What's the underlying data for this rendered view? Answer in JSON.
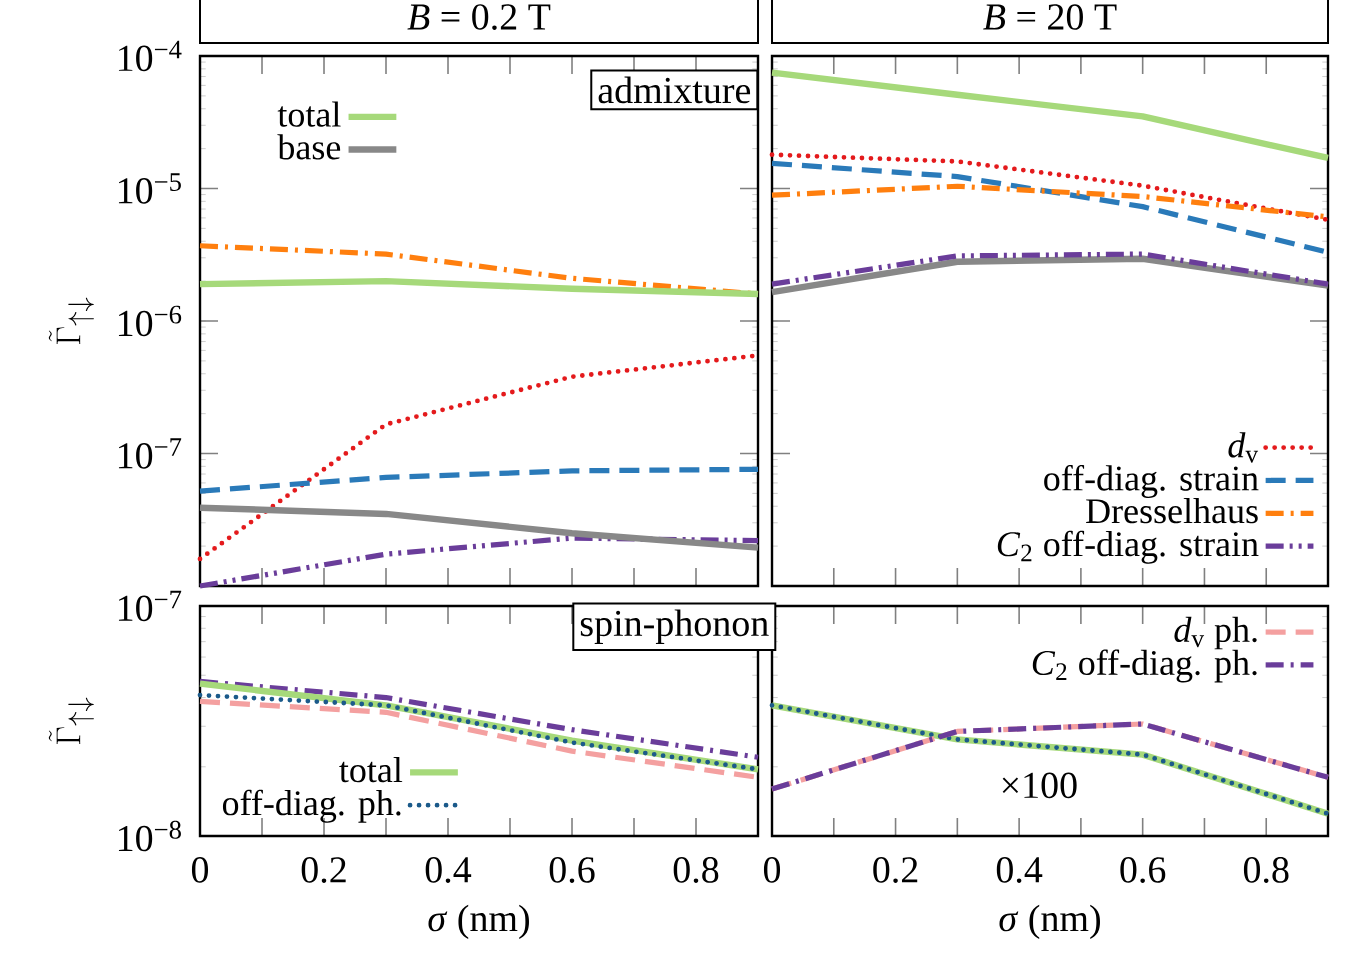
{
  "chart_data": [
    {
      "type": "line",
      "title": "*B* = 0.2 T",
      "ylabel": "\\tilde{\\Gamma}_{\\uparrow\\downarrow}",
      "log": "y",
      "xlim": [
        0,
        0.9
      ],
      "ylim": [
        1e-08,
        0.0001
      ],
      "xticks": [
        0,
        {
          "value": 0.1,
          "label": null
        },
        0.2,
        {
          "value": 0.3,
          "label": null
        },
        0.4,
        {
          "value": 0.5,
          "label": null
        },
        0.6,
        {
          "value": 0.7,
          "label": null
        },
        0.8
      ],
      "yticks": [
        {
          "value": 1e-08,
          "label": null
        },
        {
          "value": 1e-07,
          "label": "10$^{−7}$"
        },
        {
          "value": 1e-06,
          "label": "10$^{−6}$"
        },
        {
          "value": 1e-05,
          "label": "10$^{−5}$"
        },
        {
          "value": 0.0001,
          "label": "10$^{−4}$"
        }
      ],
      "tick_labels": "y",
      "legend": "top left",
      "annotations": [
        "admixture"
      ],
      "x": [
        0,
        0.3,
        0.6,
        0.9
      ],
      "series": [
        {
          "color": "#e41a1c",
          "line_style": "dotted",
          "values": [
            1.6e-08,
            1.66e-07,
            3.8e-07,
            5.5e-07
          ]
        },
        {
          "color": "#2a7ab9",
          "line_style": "dashed",
          "values": [
            5.2e-08,
            6.6e-08,
            7.4e-08,
            7.6e-08
          ]
        },
        {
          "color": "#ff7f0e",
          "line_style": "dashdot",
          "values": [
            3.7e-06,
            3.2e-06,
            2.1e-06,
            1.6e-06
          ]
        },
        {
          "color": "#6a3d9a",
          "line_style": "dashdotdot",
          "values": [
            1e-08,
            1.74e-08,
            2.3e-08,
            2.2e-08
          ]
        },
        {
          "name": "total",
          "color": "#a6d97a",
          "line_style": "solid",
          "values": [
            1.9e-06,
            2e-06,
            1.75e-06,
            1.6e-06
          ]
        },
        {
          "name": "base",
          "color": "#888888",
          "line_style": "solid",
          "values": [
            3.9e-08,
            3.5e-08,
            2.5e-08,
            1.95e-08
          ]
        }
      ]
    },
    {
      "type": "line",
      "title": "*B* = 20 T",
      "log": "y",
      "xlim": [
        0,
        0.9
      ],
      "ylim": [
        1e-08,
        0.0001
      ],
      "xticks": [
        0,
        {
          "value": 0.1,
          "label": null
        },
        0.2,
        {
          "value": 0.3,
          "label": null
        },
        0.4,
        {
          "value": 0.5,
          "label": null
        },
        0.6,
        {
          "value": 0.7,
          "label": null
        },
        0.8
      ],
      "yticks": [
        {
          "value": 1e-08,
          "label": null
        },
        {
          "value": 1e-07,
          "label": null
        },
        {
          "value": 1e-06,
          "label": null
        },
        {
          "value": 1e-05,
          "label": null
        },
        {
          "value": 0.0001,
          "label": null
        }
      ],
      "tick_labels": false,
      "legend": "bottom right",
      "x": [
        0,
        0.3,
        0.6,
        0.9
      ],
      "series": [
        {
          "color": "#a6d97a",
          "line_style": "solid",
          "values": [
            7.5e-05,
            5.1e-05,
            3.5e-05,
            1.7e-05
          ]
        },
        {
          "color": "#888888",
          "line_style": "solid",
          "values": [
            1.65e-06,
            2.8e-06,
            2.95e-06,
            1.85e-06
          ]
        },
        {
          "name": "*d*$_{v}$",
          "color": "#e41a1c",
          "line_style": "dotted",
          "values": [
            1.8e-05,
            1.6e-05,
            1.05e-05,
            5.8e-06
          ]
        },
        {
          "name": "off-diag. strain",
          "color": "#2a7ab9",
          "line_style": "dashed",
          "values": [
            1.55e-05,
            1.23e-05,
            7.3e-06,
            3.3e-06
          ]
        },
        {
          "name": "Dresselhaus",
          "color": "#ff7f0e",
          "line_style": "dashdot",
          "values": [
            8.9e-06,
            1.04e-05,
            8.7e-06,
            6.1e-06
          ]
        },
        {
          "name": "*C*$_{2}$ off-diag. strain",
          "color": "#6a3d9a",
          "line_style": "dashdotdot",
          "values": [
            1.9e-06,
            3.1e-06,
            3.2e-06,
            1.9e-06
          ]
        }
      ]
    },
    {
      "type": "line",
      "xlabel": "*σ* (nm)",
      "ylabel": "\\tilde{\\Gamma}_{\\uparrow\\downarrow}",
      "log": "y",
      "xlim": [
        0,
        0.9
      ],
      "ylim": [
        1e-08,
        1e-07
      ],
      "xticks": [
        0,
        {
          "value": 0.1,
          "label": null
        },
        0.2,
        {
          "value": 0.3,
          "label": null
        },
        0.4,
        {
          "value": 0.5,
          "label": null
        },
        0.6,
        {
          "value": 0.7,
          "label": null
        },
        0.8
      ],
      "yticks": [
        {
          "value": 1e-08,
          "label": "10$^{−8}$"
        },
        {
          "value": 1e-07,
          "label": "10$^{−7}$"
        }
      ],
      "legend": "bottom left",
      "annotations": [
        "spin-phonon"
      ],
      "x": [
        0,
        0.3,
        0.6,
        0.9
      ],
      "series": [
        {
          "color": "#f4a0a0",
          "line_style": "dashed",
          "values": [
            3.85e-08,
            3.45e-08,
            2.34e-08,
            1.8e-08
          ]
        },
        {
          "color": "#6a3d9a",
          "line_style": "dashdot",
          "values": [
            4.7e-08,
            4e-08,
            2.9e-08,
            2.2e-08
          ]
        },
        {
          "name": "total",
          "color": "#a6d97a",
          "line_style": "solid",
          "values": [
            4.6e-08,
            3.7e-08,
            2.6e-08,
            1.95e-08
          ]
        },
        {
          "name": "off-diag. ph.",
          "color": "#1b5a8a",
          "line_style": "dotted",
          "values": [
            4.1e-08,
            3.7e-08,
            2.55e-08,
            1.95e-08
          ]
        }
      ]
    },
    {
      "type": "line",
      "xlabel": "*σ* (nm)",
      "log": "y",
      "xlim": [
        0,
        0.9
      ],
      "ylim": [
        1e-08,
        1e-07
      ],
      "xticks": [
        0,
        {
          "value": 0.1,
          "label": null
        },
        0.2,
        {
          "value": 0.3,
          "label": null
        },
        0.4,
        {
          "value": 0.5,
          "label": null
        },
        0.6,
        {
          "value": 0.7,
          "label": null
        },
        0.8
      ],
      "yticks": [
        {
          "value": 1e-08,
          "label": null
        },
        {
          "value": 1e-07,
          "label": null
        }
      ],
      "tick_labels": "x",
      "legend": "top right",
      "annotations": [
        "×100"
      ],
      "x": [
        0,
        0.3,
        0.6,
        0.9
      ],
      "series": [
        {
          "color": "#a6d97a",
          "line_style": "solid",
          "values": [
            3.7e-08,
            2.63e-08,
            2.26e-08,
            1.25e-08
          ]
        },
        {
          "color": "#1b5a8a",
          "line_style": "dotted",
          "values": [
            3.7e-08,
            2.63e-08,
            2.26e-08,
            1.25e-08
          ]
        },
        {
          "name": "*d*$_{v}$ ph.",
          "color": "#f4a0a0",
          "line_style": "dashed",
          "values": [
            1.6e-08,
            2.85e-08,
            3.07e-08,
            1.8e-08
          ]
        },
        {
          "name": "*C*$_{2}$ off-diag. ph.",
          "color": "#6a3d9a",
          "line_style": "dashdot",
          "values": [
            1.6e-08,
            2.85e-08,
            3.07e-08,
            1.8e-08
          ]
        }
      ]
    }
  ]
}
